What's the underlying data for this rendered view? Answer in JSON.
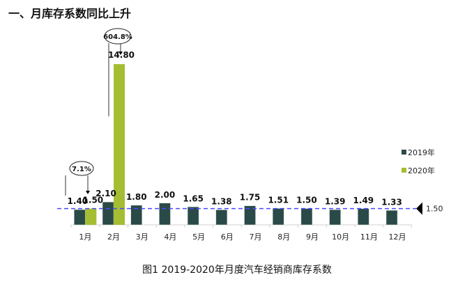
{
  "heading": "一、月库存系数同比上升",
  "caption": "图1  2019-2020年月度汽车经销商库存系数",
  "chart_data": {
    "type": "bar",
    "title": "",
    "categories": [
      "1月",
      "2月",
      "3月",
      "4月",
      "5月",
      "6月",
      "7月",
      "8月",
      "9月",
      "10月",
      "11月",
      "12月"
    ],
    "series": [
      {
        "name": "2019年",
        "color": "#2a4a48",
        "values": [
          1.4,
          2.1,
          1.8,
          2.0,
          1.65,
          1.38,
          1.75,
          1.51,
          1.5,
          1.39,
          1.49,
          1.33
        ]
      },
      {
        "name": "2020年",
        "color": "#a5bd32",
        "values": [
          1.5,
          14.8,
          null,
          null,
          null,
          null,
          null,
          null,
          null,
          null,
          null,
          null
        ]
      }
    ],
    "reference_line": {
      "value": 1.5,
      "label": "1.50",
      "color": "#4a4aff",
      "style": "dashed"
    },
    "annotations": [
      {
        "category": "1月",
        "text": "7.1%"
      },
      {
        "category": "2月",
        "text": "604.8%"
      }
    ],
    "legend": "right",
    "grid": false,
    "ylim": [
      0,
      15
    ]
  }
}
